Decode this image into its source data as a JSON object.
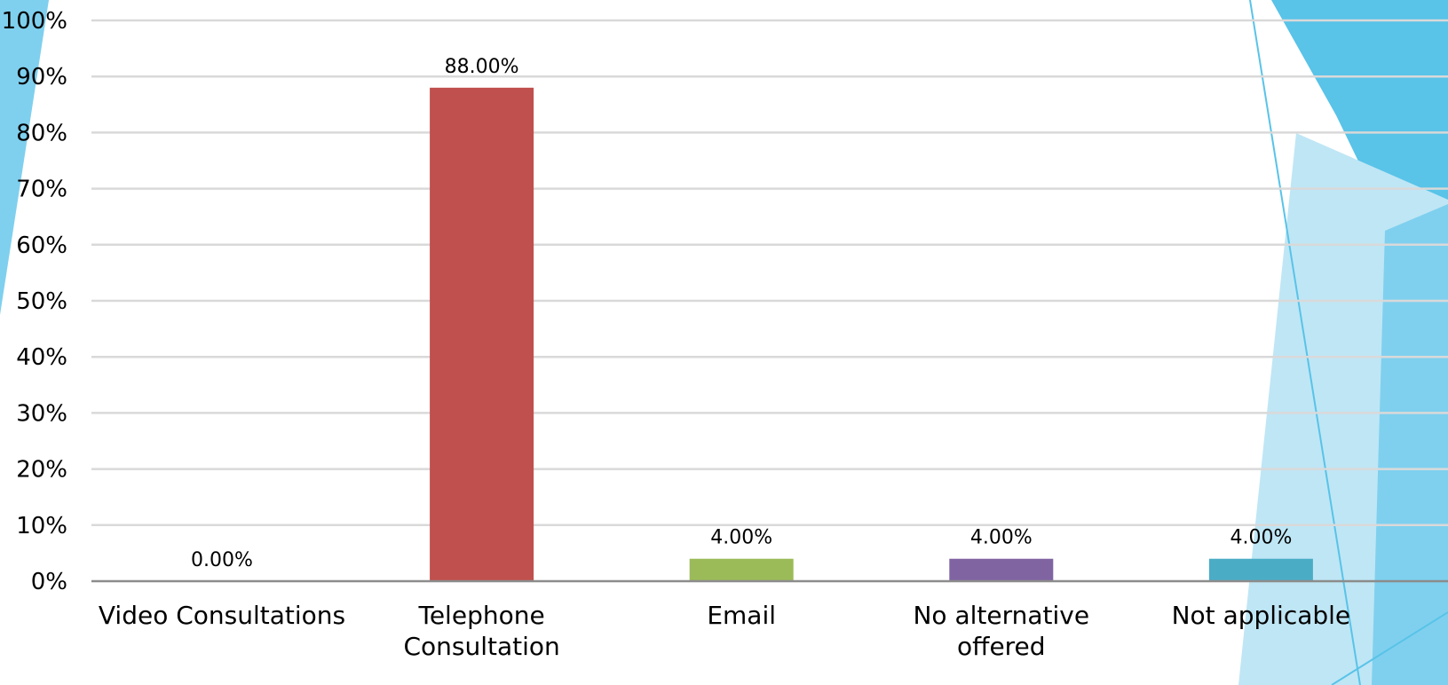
{
  "chart_data": {
    "type": "bar",
    "categories": [
      [
        "Video Consultations"
      ],
      [
        "Telephone",
        "Consultation"
      ],
      [
        "Email"
      ],
      [
        "No alternative",
        "offered"
      ],
      [
        "Not applicable"
      ]
    ],
    "values": [
      0.0,
      88.0,
      4.0,
      4.0,
      4.0
    ],
    "data_labels": [
      "0.00%",
      "88.00%",
      "4.00%",
      "4.00%",
      "4.00%"
    ],
    "bar_colors": [
      "#4f81bd",
      "#c0504d",
      "#9bbb59",
      "#8064a2",
      "#4bacc6"
    ],
    "yticks": [
      "0%",
      "10%",
      "20%",
      "30%",
      "40%",
      "50%",
      "60%",
      "70%",
      "80%",
      "90%",
      "100%"
    ],
    "ylim": [
      0,
      100
    ],
    "grid": true,
    "legend": "none",
    "title": "",
    "xlabel": "",
    "ylabel": ""
  },
  "theme": {
    "accent_light": "#bfe6f5",
    "accent_mid": "#7fd0ee",
    "accent_dark": "#59c3e8",
    "gridline": "#d9d9d9",
    "axis": "#8c8c8c"
  }
}
